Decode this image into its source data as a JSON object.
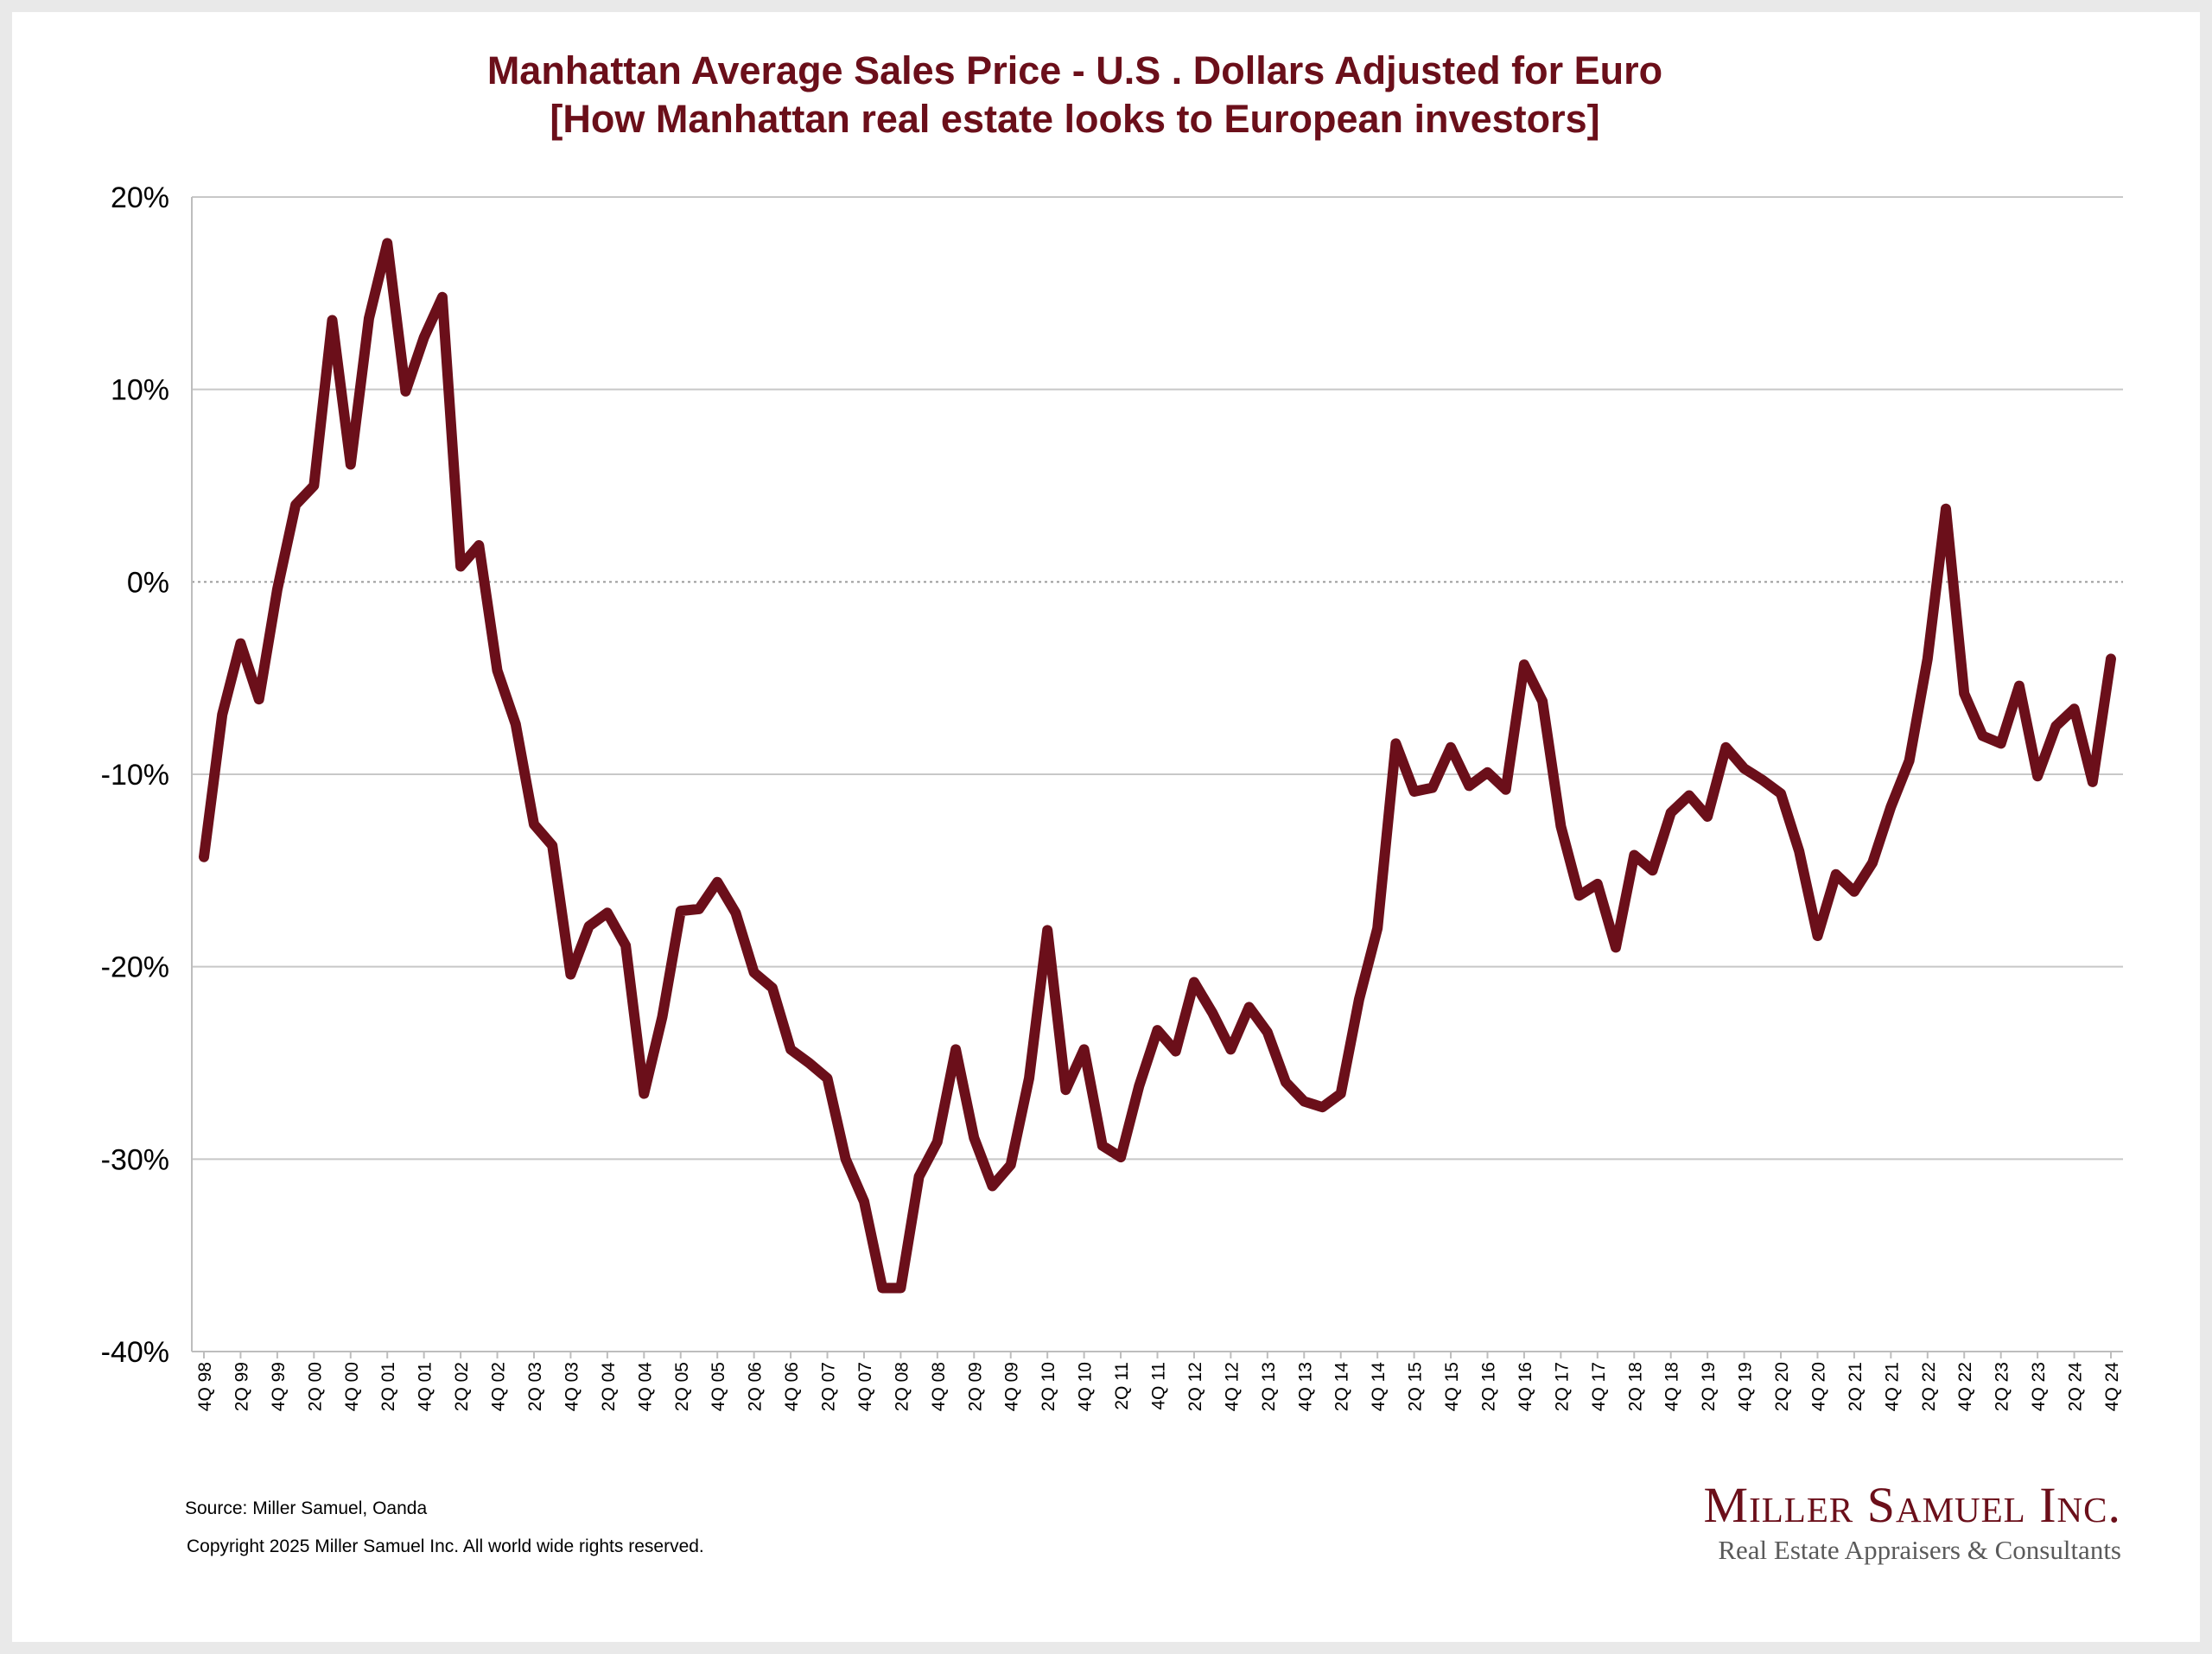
{
  "chart_data": {
    "type": "line",
    "title": [
      "Manhattan Average Sales Price - U.S . Dollars Adjusted for Euro",
      "[How Manhattan real estate looks to European investors]"
    ],
    "xlabel": "",
    "ylabel": "",
    "ylim": [
      -40,
      20
    ],
    "yticks": [
      20,
      10,
      0,
      -10,
      -20,
      -30,
      -40
    ],
    "ytick_labels": [
      "20%",
      "10%",
      "0%",
      "-10%",
      "-20%",
      "-30%",
      "-40%"
    ],
    "grid": true,
    "zero_line_dashed": true,
    "line_color": "#6b0f1a",
    "x": [
      "4Q 98",
      "1Q 99",
      "2Q 99",
      "3Q 99",
      "4Q 99",
      "1Q 00",
      "2Q 00",
      "3Q 00",
      "4Q 00",
      "1Q 01",
      "2Q 01",
      "3Q 01",
      "4Q 01",
      "1Q 02",
      "2Q 02",
      "3Q 02",
      "4Q 02",
      "1Q 03",
      "2Q 03",
      "3Q 03",
      "4Q 03",
      "1Q 04",
      "2Q 04",
      "3Q 04",
      "4Q 04",
      "1Q 05",
      "2Q 05",
      "3Q 05",
      "4Q 05",
      "1Q 06",
      "2Q 06",
      "3Q 06",
      "4Q 06",
      "1Q 07",
      "2Q 07",
      "3Q 07",
      "4Q 07",
      "1Q 08",
      "2Q 08",
      "3Q 08",
      "4Q 08",
      "1Q 09",
      "2Q 09",
      "3Q 09",
      "4Q 09",
      "1Q 10",
      "2Q 10",
      "3Q 10",
      "4Q 10",
      "1Q 11",
      "2Q 11",
      "3Q 11",
      "4Q 11",
      "1Q 12",
      "2Q 12",
      "3Q 12",
      "4Q 12",
      "1Q 13",
      "2Q 13",
      "3Q 13",
      "4Q 13",
      "1Q 14",
      "2Q 14",
      "3Q 14",
      "4Q 14",
      "1Q 15",
      "2Q 15",
      "3Q 15",
      "4Q 15",
      "1Q 16",
      "2Q 16",
      "3Q 16",
      "4Q 16",
      "1Q 17",
      "2Q 17",
      "3Q 17",
      "4Q 17",
      "1Q 18",
      "2Q 18",
      "3Q 18",
      "4Q 18",
      "1Q 19",
      "2Q 19",
      "3Q 19",
      "4Q 19",
      "1Q 20",
      "2Q 20",
      "3Q 20",
      "4Q 20",
      "1Q 21",
      "2Q 21",
      "3Q 21",
      "4Q 21",
      "1Q 22",
      "2Q 22",
      "3Q 22",
      "4Q 22",
      "1Q 23",
      "2Q 23",
      "3Q 23",
      "4Q 23",
      "1Q 24",
      "2Q 24",
      "3Q 24",
      "4Q 24"
    ],
    "x_tick_labels": [
      "4Q 98",
      "2Q 99",
      "4Q 99",
      "2Q 00",
      "4Q 00",
      "2Q 01",
      "4Q 01",
      "2Q 02",
      "4Q 02",
      "2Q 03",
      "4Q 03",
      "2Q 04",
      "4Q 04",
      "2Q 05",
      "4Q 05",
      "2Q 06",
      "4Q 06",
      "2Q 07",
      "4Q 07",
      "2Q 08",
      "4Q 08",
      "2Q 09",
      "4Q 09",
      "2Q 10",
      "4Q 10",
      "2Q 11",
      "4Q 11",
      "2Q 12",
      "4Q 12",
      "2Q 13",
      "4Q 13",
      "2Q 14",
      "4Q 14",
      "2Q 15",
      "4Q 15",
      "2Q 16",
      "4Q 16",
      "2Q 17",
      "4Q 17",
      "2Q 18",
      "4Q 18",
      "2Q 19",
      "4Q 19",
      "2Q 20",
      "4Q 20",
      "2Q 21",
      "4Q 21",
      "2Q 22",
      "4Q 22",
      "2Q 23",
      "4Q 23",
      "2Q 24",
      "4Q 24"
    ],
    "values": [
      -14.3,
      -6.9,
      -3.2,
      -6.1,
      -0.4,
      4.0,
      5.0,
      13.6,
      6.1,
      13.7,
      17.6,
      9.9,
      12.7,
      14.8,
      0.8,
      1.9,
      -4.6,
      -7.4,
      -12.6,
      -13.7,
      -20.4,
      -17.9,
      -17.2,
      -18.9,
      -26.6,
      -22.6,
      -17.1,
      -17.0,
      -15.6,
      -17.2,
      -20.3,
      -21.1,
      -24.3,
      -25.0,
      -25.8,
      -30.0,
      -32.2,
      -36.7,
      -36.7,
      -30.9,
      -29.1,
      -24.3,
      -28.9,
      -31.4,
      -30.3,
      -25.8,
      -18.1,
      -26.4,
      -24.3,
      -29.3,
      -29.9,
      -26.2,
      -23.3,
      -24.4,
      -20.8,
      -22.4,
      -24.3,
      -22.1,
      -23.4,
      -26.0,
      -27.0,
      -27.3,
      -26.6,
      -21.7,
      -18.0,
      -8.4,
      -10.9,
      -10.7,
      -8.6,
      -10.6,
      -9.9,
      -10.8,
      -4.3,
      -6.2,
      -12.7,
      -16.3,
      -15.7,
      -19.0,
      -14.2,
      -15.0,
      -12.0,
      -11.1,
      -12.2,
      -8.6,
      -9.7,
      -10.3,
      -11.0,
      -14.0,
      -18.4,
      -15.2,
      -16.1,
      -14.6,
      -11.7,
      -9.3,
      -4.0,
      3.8,
      -5.8,
      -8.0,
      -8.4,
      -5.4,
      -10.1,
      -7.5,
      -6.6,
      -10.4,
      -4.0
    ]
  },
  "footer": {
    "source": "Source: Miller Samuel, Oanda",
    "copyright": "Copyright 2025 Miller Samuel Inc.  All world wide rights reserved."
  },
  "logo": {
    "name": "Miller Samuel Inc.",
    "tagline": "Real Estate Appraisers & Consultants"
  }
}
